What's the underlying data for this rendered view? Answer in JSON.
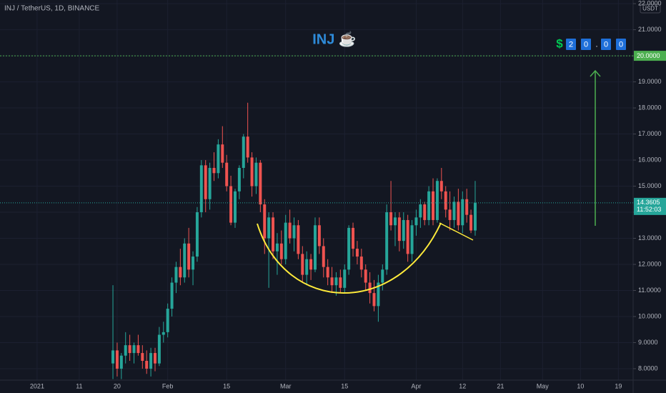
{
  "chart_data": {
    "type": "candlestick",
    "header": "INJ / TetherUS, 1D, BINANCE",
    "title": "INJ ☕",
    "y_unit": "USDT",
    "target_symbol": "$",
    "target_digits": [
      "2",
      "0",
      ".",
      "0",
      "0"
    ],
    "target_line": {
      "value": 20,
      "label": "20.0000"
    },
    "last_price": {
      "value": 14.3605,
      "label": "14.3605"
    },
    "countdown": "11:52:03",
    "up_color": "#26a69a",
    "down_color": "#ef5350",
    "grid": true,
    "ylim": [
      7.56,
      22.14
    ],
    "yticks": [
      {
        "value": 8,
        "label": "8.0000"
      },
      {
        "value": 9,
        "label": "9.0000"
      },
      {
        "value": 10,
        "label": "10.0000"
      },
      {
        "value": 11,
        "label": "11.0000"
      },
      {
        "value": 12,
        "label": "12.0000"
      },
      {
        "value": 13,
        "label": "13.0000"
      },
      {
        "value": 14,
        "label": "14.0000"
      },
      {
        "value": 15,
        "label": "15.0000"
      },
      {
        "value": 16,
        "label": "16.0000"
      },
      {
        "value": 17,
        "label": "17.0000"
      },
      {
        "value": 18,
        "label": "18.0000"
      },
      {
        "value": 19,
        "label": "19.0000"
      },
      {
        "value": 20,
        "label": "20.0000"
      },
      {
        "value": 21,
        "label": "21.0000"
      },
      {
        "value": 22,
        "label": "22.0000"
      }
    ],
    "categories": [
      "2021",
      null,
      null,
      null,
      null,
      null,
      null,
      null,
      null,
      null,
      "11",
      null,
      null,
      null,
      null,
      null,
      null,
      null,
      null,
      "20",
      null,
      null,
      null,
      null,
      null,
      null,
      null,
      null,
      null,
      null,
      null,
      "Feb",
      null,
      null,
      null,
      null,
      null,
      null,
      null,
      null,
      null,
      null,
      null,
      null,
      null,
      "15",
      null,
      null,
      null,
      null,
      null,
      null,
      null,
      null,
      null,
      null,
      null,
      null,
      null,
      "Mar",
      null,
      null,
      null,
      null,
      null,
      null,
      null,
      null,
      null,
      null,
      null,
      null,
      null,
      "15",
      null,
      null,
      null,
      null,
      null,
      null,
      null,
      null,
      null,
      null,
      null,
      null,
      null,
      null,
      null,
      null,
      "Apr",
      null,
      null,
      null,
      null,
      null,
      null,
      null,
      null,
      null,
      null,
      "12",
      null,
      null,
      null,
      null,
      null,
      null,
      null,
      null,
      "21",
      null,
      null,
      null,
      null,
      null,
      null,
      null,
      null,
      null,
      "May",
      null,
      null,
      null,
      null,
      null,
      null,
      null,
      null,
      "10",
      null,
      null,
      null,
      null,
      null,
      null,
      null,
      null,
      "19",
      null,
      null,
      null
    ],
    "open": [
      null,
      null,
      null,
      null,
      null,
      null,
      null,
      null,
      null,
      null,
      null,
      null,
      null,
      null,
      null,
      null,
      null,
      null,
      8.2,
      8.7,
      8.0,
      8.5,
      8.9,
      8.6,
      8.9,
      8.6,
      8.3,
      8.0,
      8.6,
      8.2,
      9.3,
      9.4,
      10.3,
      11.3,
      11.9,
      11.5,
      12.8,
      11.8,
      12.3,
      14.0,
      15.8,
      14.5,
      15.7,
      15.5,
      16.6,
      15.9,
      15.0,
      13.6,
      14.8,
      15.7,
      16.9,
      16.1,
      15.0,
      15.9,
      14.3,
      13.0,
      13.8,
      12.5,
      12.8,
      12.2,
      13.6,
      13.0,
      13.5,
      12.4,
      11.6,
      12.2,
      11.8,
      13.5,
      12.7,
      11.9,
      11.5,
      11.2,
      11.5,
      11.1,
      11.8,
      13.4,
      12.6,
      12.3,
      11.8,
      11.3,
      10.9,
      10.4,
      11.3,
      11.8,
      14.0,
      13.5,
      13.8,
      12.9,
      13.7,
      12.4,
      13.5,
      13.8,
      14.3,
      13.7,
      14.8,
      13.7,
      15.2,
      14.8,
      14.1,
      13.7,
      14.4,
      13.5,
      14.5,
      13.9,
      13.3,
      null,
      null,
      null,
      null,
      null,
      null,
      null,
      null,
      null,
      null,
      null,
      null,
      null,
      null,
      null,
      null,
      null,
      null,
      null,
      null,
      null,
      null,
      null,
      null,
      null,
      null,
      null,
      null,
      null,
      null,
      null,
      null,
      null,
      null,
      null,
      null,
      null
    ],
    "high": [
      null,
      null,
      null,
      null,
      null,
      null,
      null,
      null,
      null,
      null,
      null,
      null,
      null,
      null,
      null,
      null,
      null,
      null,
      11.2,
      9.0,
      8.6,
      9.4,
      9.3,
      9.0,
      9.3,
      8.9,
      8.7,
      8.8,
      8.8,
      9.6,
      9.8,
      10.5,
      11.5,
      12.1,
      12.6,
      13.0,
      13.4,
      12.5,
      14.2,
      16.0,
      16.0,
      15.9,
      16.3,
      16.8,
      17.3,
      16.2,
      15.4,
      14.9,
      15.8,
      17.0,
      18.2,
      16.3,
      16.1,
      16.0,
      14.5,
      14.0,
      14.0,
      13.2,
      13.3,
      13.9,
      14.1,
      13.8,
      13.7,
      12.7,
      12.5,
      12.4,
      13.8,
      13.8,
      13.0,
      12.2,
      11.9,
      11.7,
      11.8,
      12.0,
      13.5,
      13.6,
      12.9,
      12.6,
      12.0,
      11.7,
      11.4,
      11.6,
      12.0,
      14.3,
      15.2,
      14.0,
      14.0,
      14.0,
      13.9,
      13.7,
      14.1,
      14.5,
      14.4,
      15.0,
      15.3,
      15.3,
      15.7,
      15.0,
      14.8,
      14.6,
      14.9,
      14.8,
      14.9,
      14.1,
      15.2,
      null,
      null,
      null,
      null,
      null,
      null,
      null,
      null,
      null,
      null,
      null,
      null,
      null,
      null,
      null,
      null,
      null,
      null,
      null,
      null,
      null,
      null,
      null,
      null,
      null,
      null,
      null,
      null,
      null,
      null,
      null,
      null,
      null,
      null,
      null,
      null,
      null
    ],
    "low": [
      null,
      null,
      null,
      null,
      null,
      null,
      null,
      null,
      null,
      null,
      null,
      null,
      null,
      null,
      null,
      null,
      null,
      null,
      7.6,
      7.7,
      7.6,
      8.2,
      8.3,
      8.2,
      8.5,
      8.0,
      7.8,
      7.7,
      7.9,
      8.1,
      9.0,
      9.2,
      10.0,
      10.9,
      11.2,
      11.3,
      11.5,
      11.2,
      12.1,
      13.8,
      14.0,
      14.1,
      15.2,
      15.3,
      15.7,
      14.8,
      13.5,
      13.4,
      14.5,
      15.3,
      15.9,
      14.6,
      14.7,
      14.0,
      12.4,
      11.1,
      12.2,
      11.6,
      12.0,
      12.0,
      12.8,
      12.5,
      12.2,
      11.3,
      11.2,
      11.4,
      11.7,
      12.4,
      11.5,
      11.2,
      10.9,
      10.8,
      10.9,
      10.9,
      11.6,
      12.3,
      12.0,
      11.5,
      11.0,
      10.5,
      10.2,
      9.8,
      11.0,
      11.6,
      13.3,
      12.7,
      12.5,
      12.6,
      12.1,
      12.1,
      13.1,
      13.4,
      13.5,
      13.5,
      13.5,
      13.6,
      14.5,
      13.8,
      13.3,
      13.4,
      13.3,
      13.2,
      13.6,
      13.2,
      13.1,
      null,
      null,
      null,
      null,
      null,
      null,
      null,
      null,
      null,
      null,
      null,
      null,
      null,
      null,
      null,
      null,
      null,
      null,
      null,
      null,
      null,
      null,
      null,
      null,
      null,
      null,
      null,
      null,
      null,
      null,
      null,
      null,
      null,
      null,
      null,
      null,
      null
    ],
    "close": [
      null,
      null,
      null,
      null,
      null,
      null,
      null,
      null,
      null,
      null,
      null,
      null,
      null,
      null,
      null,
      null,
      null,
      null,
      8.7,
      8.0,
      8.5,
      8.9,
      8.6,
      8.9,
      8.6,
      8.3,
      8.0,
      8.6,
      8.2,
      9.3,
      9.4,
      10.3,
      11.3,
      11.9,
      11.5,
      12.8,
      11.8,
      12.3,
      14.0,
      15.8,
      14.5,
      15.7,
      15.5,
      16.6,
      15.9,
      15.0,
      13.6,
      14.8,
      15.7,
      16.9,
      16.1,
      15.0,
      15.9,
      14.3,
      13.0,
      13.8,
      12.5,
      12.8,
      12.2,
      13.6,
      13.0,
      13.5,
      12.4,
      11.6,
      12.2,
      11.8,
      13.5,
      12.7,
      11.9,
      11.5,
      11.2,
      11.5,
      11.1,
      11.8,
      13.4,
      12.6,
      12.3,
      11.8,
      11.3,
      10.9,
      10.4,
      11.3,
      11.8,
      14.0,
      13.5,
      13.8,
      12.9,
      13.7,
      12.4,
      13.5,
      13.8,
      14.3,
      13.7,
      14.8,
      13.7,
      15.2,
      14.8,
      14.1,
      13.7,
      14.4,
      13.5,
      14.5,
      13.9,
      13.3,
      14.3605,
      null,
      null,
      null,
      null,
      null,
      null,
      null,
      null,
      null,
      null,
      null,
      null,
      null,
      null,
      null,
      null,
      null,
      null,
      null,
      null,
      null,
      null,
      null,
      null,
      null,
      null,
      null,
      null,
      null,
      null,
      null,
      null,
      null,
      null,
      null,
      null,
      null
    ]
  }
}
